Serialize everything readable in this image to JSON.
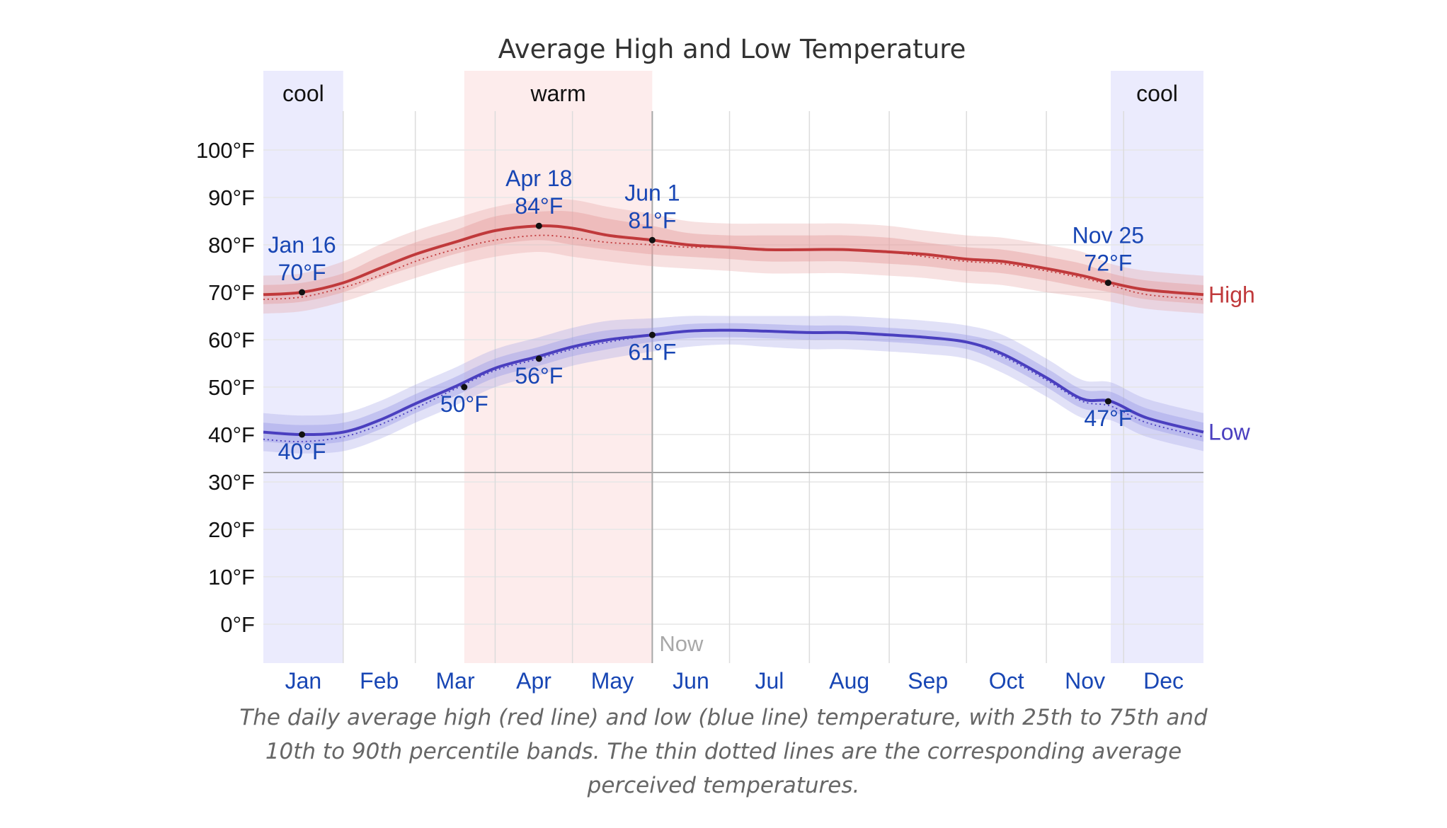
{
  "chart_data": {
    "type": "line",
    "title": "Average High and Low Temperature",
    "xlabel": "",
    "ylabel": "",
    "ylim": [
      -8,
      108
    ],
    "x_unit": "day of year",
    "month_labels": [
      "Jan",
      "Feb",
      "Mar",
      "Apr",
      "May",
      "Jun",
      "Jul",
      "Aug",
      "Sep",
      "Oct",
      "Nov",
      "Dec"
    ],
    "y_ticks": [
      "0°F",
      "10°F",
      "20°F",
      "30°F",
      "40°F",
      "50°F",
      "60°F",
      "70°F",
      "80°F",
      "90°F",
      "100°F"
    ],
    "y_tick_values": [
      0,
      10,
      20,
      30,
      40,
      50,
      60,
      70,
      80,
      90,
      100
    ],
    "freezing_line": 32,
    "now_label": "Now",
    "now_day": 152,
    "seasons": [
      {
        "label": "cool",
        "start_day": 1,
        "end_day": 32,
        "color": "#ebebfd"
      },
      {
        "label": "warm",
        "start_day": 79,
        "end_day": 152,
        "color": "#fdecec"
      },
      {
        "label": "cool",
        "start_day": 330,
        "end_day": 366,
        "color": "#ebebfd"
      }
    ],
    "series": [
      {
        "name": "High",
        "color": "#c0393b",
        "band_color": "#e49c9c",
        "x": [
          1,
          16,
          32,
          46,
          60,
          75,
          91,
          108,
          121,
          135,
          152,
          166,
          182,
          196,
          213,
          227,
          244,
          258,
          274,
          288,
          305,
          319,
          330,
          344,
          366
        ],
        "values": [
          69.5,
          70,
          72,
          75,
          78,
          80.5,
          83,
          84,
          83.5,
          82,
          81,
          80,
          79.5,
          79,
          79,
          79,
          78.5,
          78,
          77,
          76.5,
          75,
          73.5,
          72,
          70.5,
          69.5
        ],
        "perceived": [
          68.5,
          69,
          71,
          73.5,
          76.5,
          79,
          81,
          82,
          81.5,
          80.5,
          80,
          79.5,
          79.5,
          79,
          79,
          79,
          78.5,
          77.5,
          76.5,
          76,
          74.5,
          73,
          71.5,
          69.5,
          68.5
        ],
        "p25_p75": [
          [
            67.5,
            71.5
          ],
          [
            68,
            72
          ],
          [
            70,
            74
          ],
          [
            73,
            77.5
          ],
          [
            75.5,
            80.5
          ],
          [
            78,
            83
          ],
          [
            80,
            86
          ],
          [
            81,
            87
          ],
          [
            80,
            87
          ],
          [
            79,
            85.5
          ],
          [
            78,
            84
          ],
          [
            77.5,
            82.5
          ],
          [
            77,
            82
          ],
          [
            76.5,
            82
          ],
          [
            76.5,
            82
          ],
          [
            76.5,
            82
          ],
          [
            76,
            81.5
          ],
          [
            75.5,
            80.5
          ],
          [
            74.5,
            79.5
          ],
          [
            74,
            79
          ],
          [
            72.5,
            77.5
          ],
          [
            71,
            76
          ],
          [
            70,
            74
          ],
          [
            68.5,
            72.5
          ],
          [
            67.5,
            71.5
          ]
        ],
        "p10_p90": [
          [
            65.5,
            73.5
          ],
          [
            66,
            74
          ],
          [
            68,
            76.5
          ],
          [
            70.5,
            80
          ],
          [
            73,
            83
          ],
          [
            75.5,
            85.5
          ],
          [
            77.5,
            88
          ],
          [
            78.5,
            89.5
          ],
          [
            77.5,
            89.5
          ],
          [
            76.5,
            88
          ],
          [
            75.5,
            86.5
          ],
          [
            75,
            85
          ],
          [
            74.5,
            84.5
          ],
          [
            74,
            84.5
          ],
          [
            74,
            84.5
          ],
          [
            74,
            84.5
          ],
          [
            73.5,
            84
          ],
          [
            73,
            83
          ],
          [
            72,
            82
          ],
          [
            71.5,
            81.5
          ],
          [
            70,
            80
          ],
          [
            69,
            78.5
          ],
          [
            68,
            76
          ],
          [
            66.5,
            74.5
          ],
          [
            65.5,
            73.5
          ]
        ]
      },
      {
        "name": "Low",
        "color": "#4a3fbf",
        "band_color": "#9c9ce6",
        "x": [
          1,
          16,
          32,
          46,
          60,
          75,
          91,
          108,
          121,
          135,
          152,
          166,
          182,
          196,
          213,
          227,
          244,
          258,
          274,
          288,
          305,
          319,
          330,
          344,
          366
        ],
        "values": [
          40.5,
          40,
          40.5,
          43,
          46.5,
          50,
          54,
          56.5,
          58.5,
          60,
          61,
          61.8,
          62,
          61.8,
          61.5,
          61.5,
          61,
          60.5,
          59.5,
          57,
          52,
          47.5,
          47,
          43.5,
          40.5
        ],
        "perceived": [
          39,
          38.5,
          39.5,
          42,
          45.5,
          49.5,
          53.5,
          56,
          58,
          59.5,
          61,
          61.8,
          62,
          61.8,
          61.5,
          61.5,
          61,
          60.5,
          59.5,
          56.5,
          51.5,
          47,
          46,
          42.5,
          39.5
        ],
        "p25_p75": [
          [
            38.5,
            42.5
          ],
          [
            38,
            42
          ],
          [
            38.5,
            42.5
          ],
          [
            41,
            45
          ],
          [
            44.5,
            48.5
          ],
          [
            48,
            52
          ],
          [
            52,
            56
          ],
          [
            54.5,
            58.5
          ],
          [
            56.5,
            60.5
          ],
          [
            58,
            62
          ],
          [
            59.5,
            62.5
          ],
          [
            60.3,
            63.3
          ],
          [
            60.5,
            63.5
          ],
          [
            60.3,
            63.3
          ],
          [
            60,
            63
          ],
          [
            60,
            63
          ],
          [
            59.5,
            62.5
          ],
          [
            59,
            62
          ],
          [
            58,
            61
          ],
          [
            55,
            59
          ],
          [
            50,
            54
          ],
          [
            45.5,
            49.5
          ],
          [
            45,
            49
          ],
          [
            41.5,
            45.5
          ],
          [
            38.5,
            42.5
          ]
        ],
        "p10_p90": [
          [
            36.5,
            44.5
          ],
          [
            36,
            44
          ],
          [
            36.5,
            44.5
          ],
          [
            39,
            47
          ],
          [
            42.5,
            50.5
          ],
          [
            46,
            54
          ],
          [
            50,
            58
          ],
          [
            52.5,
            60.5
          ],
          [
            54.5,
            62.5
          ],
          [
            56,
            64
          ],
          [
            57.5,
            64.5
          ],
          [
            58.5,
            65
          ],
          [
            59,
            65
          ],
          [
            58.5,
            65
          ],
          [
            58,
            65
          ],
          [
            58,
            65
          ],
          [
            57.5,
            64.5
          ],
          [
            57,
            64
          ],
          [
            56,
            63
          ],
          [
            53,
            61
          ],
          [
            48,
            56
          ],
          [
            43.5,
            51.5
          ],
          [
            43,
            51
          ],
          [
            39.5,
            47.5
          ],
          [
            36.5,
            44.5
          ]
        ]
      }
    ],
    "annotations": [
      {
        "series": "High",
        "day": 16,
        "value": 70,
        "date": "Jan 16",
        "label": "70°F",
        "position": "above"
      },
      {
        "series": "High",
        "day": 108,
        "value": 84,
        "date": "Apr 18",
        "label": "84°F",
        "position": "above"
      },
      {
        "series": "High",
        "day": 152,
        "value": 81,
        "date": "Jun 1",
        "label": "81°F",
        "position": "above"
      },
      {
        "series": "High",
        "day": 329,
        "value": 72,
        "date": "Nov 25",
        "label": "72°F",
        "position": "above"
      },
      {
        "series": "Low",
        "day": 16,
        "value": 40,
        "date": "",
        "label": "40°F",
        "position": "below"
      },
      {
        "series": "Low",
        "day": 79,
        "value": 50,
        "date": "",
        "label": "50°F",
        "position": "below"
      },
      {
        "series": "Low",
        "day": 108,
        "value": 56,
        "date": "",
        "label": "56°F",
        "position": "below"
      },
      {
        "series": "Low",
        "day": 152,
        "value": 61,
        "date": "",
        "label": "61°F",
        "position": "below"
      },
      {
        "series": "Low",
        "day": 329,
        "value": 47,
        "date": "",
        "label": "47°F",
        "position": "below"
      }
    ],
    "grid": true,
    "legend": "right-end labels"
  },
  "caption": "The daily average high (red line) and low (blue line) temperature, with 25th to 75th and 10th to 90th percentile bands. The thin dotted lines are the corresponding average perceived temperatures."
}
